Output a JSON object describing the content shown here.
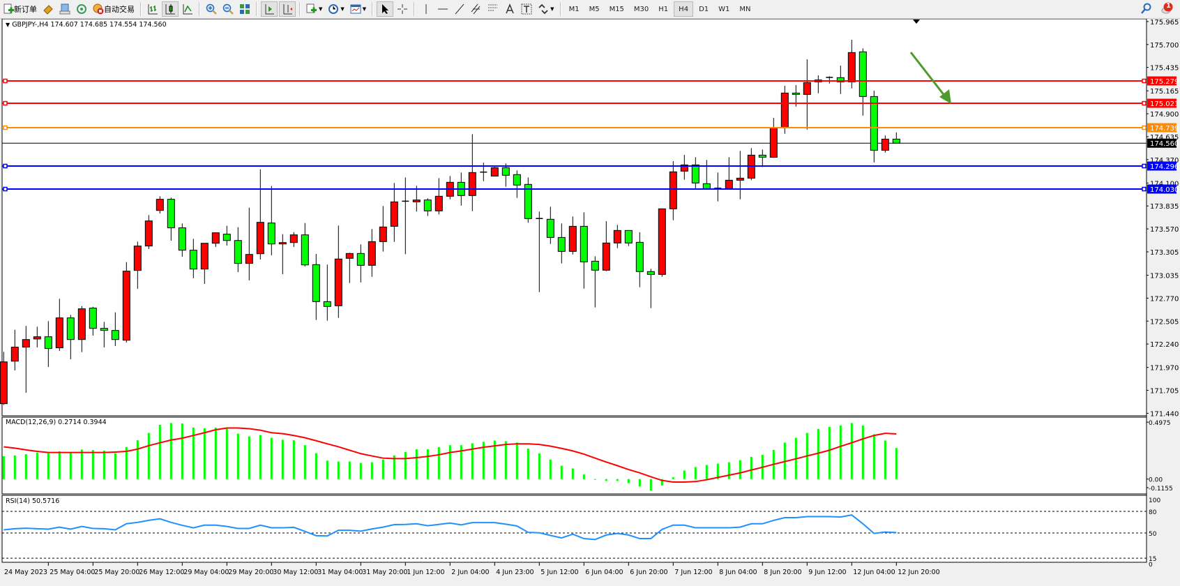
{
  "toolbar": {
    "new_order_label": "新订单",
    "auto_trading_label": "自动交易",
    "icons": [
      "new-order-icon",
      "market-watch-icon",
      "data-window-icon",
      "signals-icon",
      "auto-trading-icon",
      "bar-chart-icon",
      "candlestick-icon",
      "line-chart-icon",
      "zoom-in-icon",
      "zoom-out-icon",
      "tile-windows-icon",
      "auto-scroll-icon",
      "chart-shift-icon",
      "indicators-icon",
      "periods-icon",
      "templates-icon",
      "cursor-icon",
      "crosshair-icon",
      "vertical-line-icon",
      "horizontal-line-icon",
      "trendline-icon",
      "equidistant-channel-icon",
      "fibonacci-icon",
      "text-icon",
      "text-label-icon",
      "arrows-icon"
    ],
    "timeframes": [
      "M1",
      "M5",
      "M15",
      "M30",
      "H1",
      "H4",
      "D1",
      "W1",
      "MN"
    ],
    "active_timeframe": "H4",
    "notification_count": "1"
  },
  "chart": {
    "symbol_info": "GBPJPY-,H4  174.607 174.685 174.554 174.560",
    "bull_color": "#ff0000",
    "bear_color": "#00ff00",
    "price_ticks": [
      "175.965",
      "175.700",
      "175.435",
      "175.165",
      "174.900",
      "174.635",
      "174.370",
      "174.100",
      "173.835",
      "173.570",
      "173.305",
      "173.035",
      "172.770",
      "172.505",
      "172.240",
      "171.970",
      "171.705",
      "171.440"
    ],
    "price_range": [
      171.44,
      175.965
    ],
    "horizontal_lines": [
      {
        "price": "175.279",
        "color": "#ff0000"
      },
      {
        "price": "175.021",
        "color": "#ff0000"
      },
      {
        "price": "174.739",
        "color": "#ff8c00"
      },
      {
        "price": "174.296",
        "color": "#0000ff"
      },
      {
        "price": "174.030",
        "color": "#0000ff"
      }
    ],
    "bid_line": {
      "price": "174.560",
      "color": "#000000"
    },
    "arrow_color": "#4e9a2e",
    "time_labels": [
      "24 May 2023",
      "25 May 04:00",
      "25 May 20:00",
      "26 May 12:00",
      "29 May 04:00",
      "29 May 20:00",
      "30 May 12:00",
      "31 May 04:00",
      "31 May 20:00",
      "1 Jun 12:00",
      "2 Jun 04:00",
      "4 Jun 23:00",
      "5 Jun 12:00",
      "6 Jun 04:00",
      "6 Jun 20:00",
      "7 Jun 12:00",
      "8 Jun 04:00",
      "8 Jun 20:00",
      "9 Jun 12:00",
      "12 Jun 04:00",
      "12 Jun 20:00"
    ]
  },
  "macd": {
    "label": "MACD(12,26,9) 0.2714 0.3944",
    "ticks": [
      "0.4975",
      "0.00",
      "-0.1155"
    ],
    "histogram_color": "#00ff00",
    "signal_color": "#ff0000"
  },
  "rsi": {
    "label": "RSI(14) 50.5716",
    "ticks": [
      "100",
      "80",
      "50",
      "15",
      "0"
    ],
    "levels": [
      80,
      50,
      15
    ],
    "line_color": "#1e90ff"
  },
  "chart_data": [
    {
      "type": "candlestick",
      "title": "GBPJPY-,H4",
      "ylim": [
        171.44,
        175.965
      ],
      "ohlc": [
        [
          171.551,
          172.15,
          171.537,
          172.034
        ],
        [
          172.042,
          172.405,
          171.935,
          172.204
        ],
        [
          172.204,
          172.448,
          171.677,
          172.292
        ],
        [
          172.298,
          172.44,
          172.201,
          172.324
        ],
        [
          172.324,
          172.504,
          171.975,
          172.188
        ],
        [
          172.196,
          172.762,
          172.161,
          172.542
        ],
        [
          172.542,
          172.577,
          172.064,
          172.292
        ],
        [
          172.292,
          172.679,
          172.147,
          172.647
        ],
        [
          172.655,
          172.671,
          172.338,
          172.421
        ],
        [
          172.421,
          172.496,
          172.201,
          172.397
        ],
        [
          172.397,
          172.606,
          172.217,
          172.292
        ],
        [
          172.284,
          173.187,
          172.257,
          173.082
        ],
        [
          173.09,
          173.423,
          172.878,
          173.372
        ],
        [
          173.372,
          173.729,
          173.337,
          173.662
        ],
        [
          173.783,
          173.947,
          173.748,
          173.912
        ],
        [
          173.912,
          173.931,
          173.434,
          173.582
        ],
        [
          173.582,
          173.633,
          173.249,
          173.324
        ],
        [
          173.324,
          173.455,
          173.0,
          173.106
        ],
        [
          173.106,
          173.404,
          172.934,
          173.404
        ],
        [
          173.404,
          173.525,
          173.361,
          173.525
        ],
        [
          173.509,
          173.606,
          173.377,
          173.436
        ],
        [
          173.436,
          173.59,
          173.071,
          173.171
        ],
        [
          173.171,
          173.815,
          172.975,
          173.275
        ],
        [
          173.283,
          174.258,
          173.216,
          173.646
        ],
        [
          173.638,
          174.065,
          173.265,
          173.396
        ],
        [
          173.396,
          173.509,
          173.047,
          173.412
        ],
        [
          173.412,
          173.533,
          173.361,
          173.501
        ],
        [
          173.501,
          173.638,
          173.136,
          173.154
        ],
        [
          173.157,
          173.281,
          172.518,
          172.73
        ],
        [
          172.73,
          173.157,
          172.51,
          172.674
        ],
        [
          172.682,
          173.608,
          172.542,
          173.222
        ],
        [
          173.23,
          173.294,
          172.945,
          173.286
        ],
        [
          173.286,
          173.391,
          172.953,
          173.149
        ],
        [
          173.149,
          173.568,
          173.017,
          173.423
        ],
        [
          173.423,
          173.834,
          173.308,
          173.592
        ],
        [
          173.6,
          174.1,
          173.42,
          173.882
        ],
        [
          173.885,
          174.164,
          173.278,
          173.89
        ],
        [
          173.882,
          174.068,
          173.77,
          173.904
        ],
        [
          173.904,
          173.923,
          173.719,
          173.778
        ],
        [
          173.778,
          174.156,
          173.737,
          173.947
        ],
        [
          173.947,
          174.18,
          173.912,
          174.108
        ],
        [
          174.108,
          174.221,
          173.839,
          173.955
        ],
        [
          173.955,
          174.664,
          173.775,
          174.221
        ],
        [
          174.225,
          174.334,
          174.121,
          174.226
        ],
        [
          174.18,
          174.293,
          174.18,
          174.277
        ],
        [
          174.277,
          174.326,
          174.057,
          174.189
        ],
        [
          174.197,
          174.245,
          173.928,
          174.076
        ],
        [
          174.084,
          174.164,
          173.641,
          173.689
        ],
        [
          173.69,
          173.77,
          172.84,
          173.687
        ],
        [
          173.681,
          173.826,
          173.396,
          173.471
        ],
        [
          173.471,
          173.633,
          173.171,
          173.31
        ],
        [
          173.31,
          173.713,
          173.275,
          173.6
        ],
        [
          173.6,
          173.761,
          172.88,
          173.189
        ],
        [
          173.197,
          173.254,
          172.663,
          173.093
        ],
        [
          173.093,
          173.659,
          173.082,
          173.407
        ],
        [
          173.407,
          173.616,
          173.348,
          173.552
        ],
        [
          173.552,
          173.552,
          173.372,
          173.407
        ],
        [
          173.415,
          173.531,
          172.897,
          173.077
        ],
        [
          173.077,
          173.109,
          172.655,
          173.044
        ],
        [
          173.044,
          173.802,
          173.017,
          173.802
        ],
        [
          173.802,
          174.352,
          173.67,
          174.229
        ],
        [
          174.237,
          174.425,
          174.138,
          174.309
        ],
        [
          174.309,
          174.398,
          174.035,
          174.1
        ],
        [
          174.092,
          174.366,
          174.03,
          174.035
        ],
        [
          174.035,
          174.221,
          173.888,
          174.04
        ],
        [
          174.035,
          174.398,
          174.03,
          174.132
        ],
        [
          174.132,
          174.471,
          173.912,
          174.156
        ],
        [
          174.156,
          174.503,
          174.132,
          174.422
        ],
        [
          174.422,
          174.487,
          174.285,
          174.398
        ],
        [
          174.397,
          174.852,
          174.39,
          174.736
        ],
        [
          174.736,
          175.223,
          174.669,
          175.139
        ],
        [
          175.139,
          175.231,
          174.983,
          175.123
        ],
        [
          175.123,
          175.529,
          174.717,
          175.26
        ],
        [
          175.268,
          175.344,
          175.137,
          175.29
        ],
        [
          175.318,
          175.333,
          175.249,
          175.32
        ],
        [
          175.317,
          175.456,
          175.128,
          175.268
        ],
        [
          175.268,
          175.755,
          175.193,
          175.607
        ],
        [
          175.615,
          175.655,
          174.878,
          175.099
        ],
        [
          175.099,
          175.166,
          174.338,
          174.478
        ],
        [
          174.478,
          174.65,
          174.451,
          174.607
        ],
        [
          174.607,
          174.685,
          174.554,
          174.56
        ]
      ]
    },
    {
      "type": "bar",
      "title": "MACD(12,26,9)",
      "ylim": [
        -0.1155,
        0.4975
      ],
      "series": [
        {
          "name": "MACD",
          "values": [
            0.2,
            0.206,
            0.218,
            0.232,
            0.226,
            0.242,
            0.236,
            0.258,
            0.254,
            0.248,
            0.226,
            0.28,
            0.339,
            0.403,
            0.474,
            0.49,
            0.486,
            0.45,
            0.444,
            0.45,
            0.44,
            0.397,
            0.373,
            0.385,
            0.361,
            0.343,
            0.339,
            0.296,
            0.226,
            0.161,
            0.153,
            0.153,
            0.141,
            0.147,
            0.171,
            0.206,
            0.236,
            0.26,
            0.26,
            0.28,
            0.296,
            0.296,
            0.313,
            0.325,
            0.337,
            0.331,
            0.319,
            0.266,
            0.224,
            0.171,
            0.117,
            0.093,
            0.04,
            -0.002,
            -0.016,
            -0.016,
            -0.036,
            -0.065,
            -0.101,
            -0.056,
            0.016,
            0.075,
            0.105,
            0.123,
            0.135,
            0.147,
            0.165,
            0.194,
            0.212,
            0.254,
            0.319,
            0.361,
            0.403,
            0.438,
            0.456,
            0.468,
            0.49,
            0.468,
            0.391,
            0.337,
            0.2714
          ]
        },
        {
          "name": "Signal",
          "values": [
            0.282,
            0.27,
            0.255,
            0.242,
            0.232,
            0.232,
            0.232,
            0.232,
            0.232,
            0.232,
            0.236,
            0.242,
            0.262,
            0.292,
            0.317,
            0.341,
            0.357,
            0.381,
            0.405,
            0.431,
            0.446,
            0.446,
            0.44,
            0.427,
            0.405,
            0.397,
            0.381,
            0.361,
            0.335,
            0.308,
            0.282,
            0.252,
            0.222,
            0.202,
            0.183,
            0.179,
            0.179,
            0.187,
            0.198,
            0.212,
            0.232,
            0.246,
            0.262,
            0.278,
            0.29,
            0.302,
            0.308,
            0.308,
            0.302,
            0.288,
            0.268,
            0.246,
            0.218,
            0.183,
            0.149,
            0.117,
            0.083,
            0.054,
            0.02,
            -0.012,
            -0.026,
            -0.026,
            -0.022,
            -0.006,
            0.014,
            0.034,
            0.054,
            0.079,
            0.103,
            0.129,
            0.153,
            0.177,
            0.202,
            0.226,
            0.252,
            0.286,
            0.317,
            0.351,
            0.381,
            0.4,
            0.3944
          ]
        }
      ]
    },
    {
      "type": "line",
      "title": "RSI(14)",
      "ylim": [
        0,
        100
      ],
      "values": [
        54.4,
        55.9,
        56.6,
        55.9,
        55.3,
        58.1,
        55.3,
        59.1,
        56.3,
        55.9,
        54.4,
        62.8,
        64.7,
        67.5,
        69.7,
        64.7,
        60.6,
        57.2,
        60.9,
        60.9,
        59.1,
        56.3,
        56.3,
        60.9,
        57.2,
        57.2,
        57.8,
        52.2,
        46.3,
        45.9,
        53.8,
        53.8,
        52.5,
        55.6,
        58.1,
        61.6,
        61.9,
        62.8,
        60.0,
        61.9,
        63.8,
        61.3,
        64.4,
        64.4,
        64.4,
        62.2,
        59.7,
        50.9,
        50.3,
        46.6,
        43.1,
        48.4,
        42.2,
        40.9,
        47.2,
        49.4,
        47.2,
        42.2,
        42.2,
        55.0,
        60.9,
        60.9,
        57.2,
        57.2,
        57.2,
        57.2,
        58.1,
        62.8,
        62.8,
        67.5,
        71.3,
        71.3,
        72.8,
        72.8,
        72.8,
        72.2,
        75.0,
        62.8,
        49.4,
        51.3,
        50.5716
      ]
    }
  ]
}
